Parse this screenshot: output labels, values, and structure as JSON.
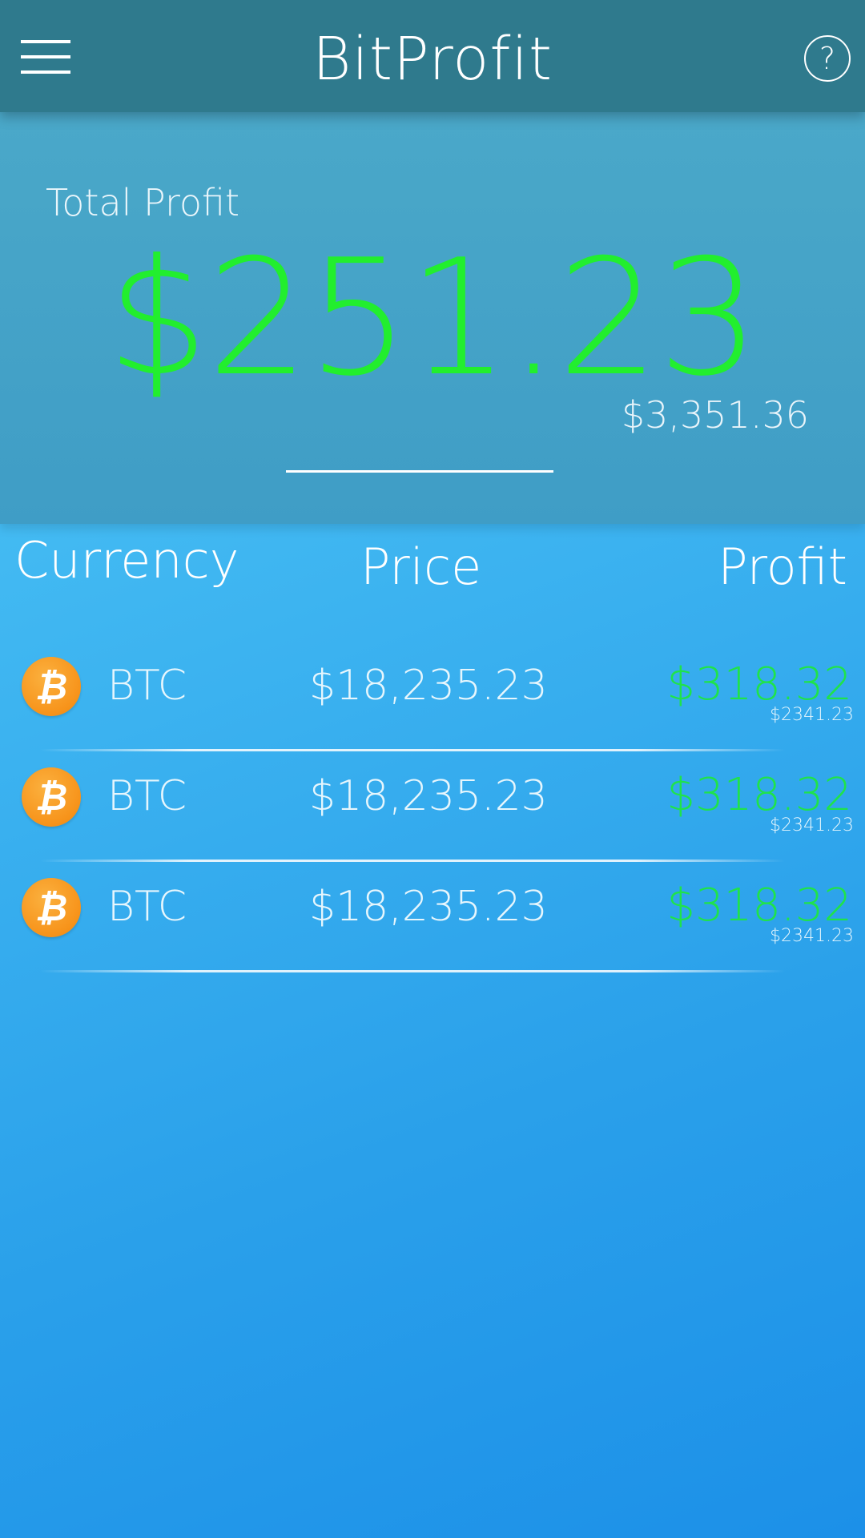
{
  "header": {
    "title": "BitProfit",
    "menu_icon": "hamburger-menu-icon",
    "help_icon": "question-mark-icon",
    "help_glyph": "?"
  },
  "summary": {
    "label": "Total Profit",
    "total_profit": "$251.23",
    "total_value": "$3,351.36"
  },
  "columns": {
    "currency": "Currency",
    "price": "Price",
    "profit": "Profit"
  },
  "rows": [
    {
      "icon": "bitcoin-icon",
      "icon_glyph": "₿",
      "symbol": "BTC",
      "price": "$18,235.23",
      "profit": "$318.32",
      "value": "$2341.23"
    },
    {
      "icon": "bitcoin-icon",
      "icon_glyph": "₿",
      "symbol": "BTC",
      "price": "$18,235.23",
      "profit": "$318.32",
      "value": "$2341.23"
    },
    {
      "icon": "bitcoin-icon",
      "icon_glyph": "₿",
      "symbol": "BTC",
      "price": "$18,235.23",
      "profit": "$318.32",
      "value": "$2341.23"
    }
  ],
  "colors": {
    "header_bg": "#2f7a8d",
    "profit_green": "#22ee2e",
    "bitcoin_orange": "#f7931a"
  }
}
